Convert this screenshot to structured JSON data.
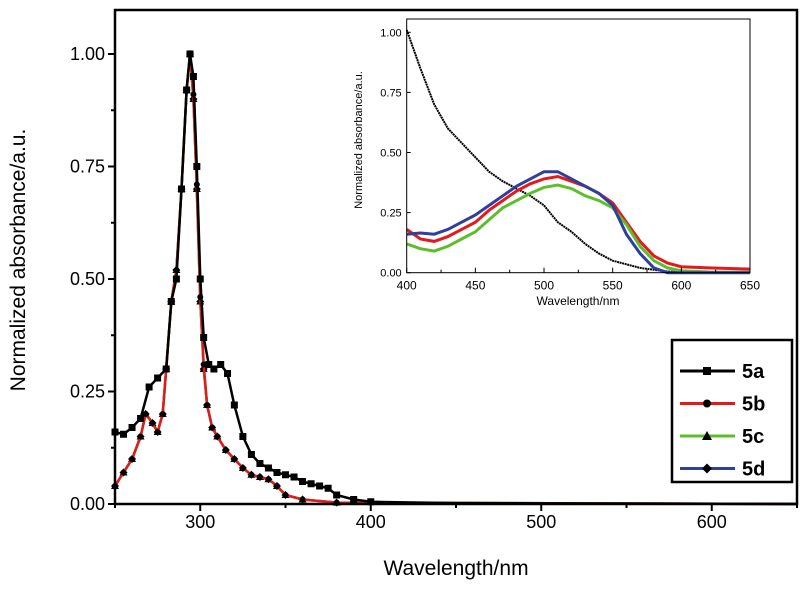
{
  "chart_data": [
    {
      "type": "line",
      "xlabel": "Wavelength/nm",
      "ylabel": "Normalized absorbance/a.u.",
      "xlim": [
        250,
        650
      ],
      "ylim": [
        0,
        1.1
      ],
      "xticks": [
        300,
        400,
        500,
        600
      ],
      "yticks": [
        "0.00",
        "0.25",
        "0.50",
        "0.75",
        "1.00"
      ],
      "legend_position": "right",
      "series": [
        {
          "name": "5a",
          "color": "#000000",
          "marker": "square",
          "x": [
            250,
            255,
            260,
            265,
            270,
            275,
            280,
            283,
            286,
            289,
            292,
            294,
            296,
            298,
            300,
            302,
            305,
            308,
            312,
            316,
            320,
            325,
            330,
            335,
            340,
            345,
            350,
            355,
            360,
            365,
            370,
            375,
            380,
            390,
            400,
            450,
            650
          ],
          "y": [
            0.16,
            0.155,
            0.17,
            0.19,
            0.26,
            0.28,
            0.3,
            0.45,
            0.5,
            0.7,
            0.92,
            1.0,
            0.95,
            0.75,
            0.5,
            0.37,
            0.31,
            0.3,
            0.31,
            0.29,
            0.22,
            0.15,
            0.11,
            0.09,
            0.08,
            0.07,
            0.065,
            0.06,
            0.05,
            0.045,
            0.04,
            0.035,
            0.02,
            0.01,
            0.005,
            0.002,
            0
          ]
        },
        {
          "name": "5b",
          "color": "#e31a1c",
          "marker": "circle",
          "x": [
            250,
            255,
            260,
            265,
            268,
            272,
            275,
            278,
            280,
            283,
            286,
            289,
            292,
            294,
            296,
            298,
            300,
            302,
            304,
            307,
            310,
            315,
            320,
            325,
            330,
            335,
            340,
            345,
            350,
            360,
            380,
            650
          ],
          "y": [
            0.04,
            0.07,
            0.1,
            0.15,
            0.2,
            0.18,
            0.16,
            0.2,
            0.3,
            0.45,
            0.52,
            0.7,
            0.92,
            1.0,
            0.91,
            0.71,
            0.46,
            0.31,
            0.22,
            0.17,
            0.15,
            0.12,
            0.1,
            0.08,
            0.065,
            0.06,
            0.055,
            0.04,
            0.02,
            0.01,
            0.003,
            0
          ]
        },
        {
          "name": "5c",
          "color": "#5cbf2a",
          "marker": "triangle",
          "x": [
            250,
            255,
            260,
            265,
            268,
            272,
            275,
            278,
            280,
            283,
            286,
            289,
            292,
            294,
            296,
            298,
            300,
            302,
            304,
            307,
            310,
            315,
            320,
            325,
            330,
            335,
            340,
            345,
            350,
            360,
            380,
            650
          ],
          "y": [
            0.04,
            0.07,
            0.1,
            0.15,
            0.2,
            0.18,
            0.16,
            0.2,
            0.3,
            0.45,
            0.52,
            0.7,
            0.92,
            1.0,
            0.9,
            0.7,
            0.45,
            0.3,
            0.22,
            0.17,
            0.15,
            0.12,
            0.1,
            0.08,
            0.065,
            0.06,
            0.055,
            0.04,
            0.02,
            0.01,
            0.003,
            0
          ]
        },
        {
          "name": "5d",
          "color": "#2e3f9c",
          "marker": "diamond",
          "x": [
            250,
            255,
            260,
            265,
            268,
            272,
            275,
            278,
            280,
            283,
            286,
            289,
            292,
            294,
            296,
            298,
            300,
            302,
            304,
            307,
            310,
            315,
            320,
            325,
            330,
            335,
            340,
            345,
            350,
            360,
            380,
            650
          ],
          "y": [
            0.04,
            0.07,
            0.1,
            0.15,
            0.2,
            0.18,
            0.16,
            0.2,
            0.3,
            0.45,
            0.52,
            0.7,
            0.92,
            1.0,
            0.9,
            0.7,
            0.45,
            0.3,
            0.22,
            0.17,
            0.15,
            0.12,
            0.1,
            0.08,
            0.065,
            0.06,
            0.055,
            0.04,
            0.02,
            0.01,
            0.003,
            0
          ]
        }
      ]
    },
    {
      "type": "line",
      "xlabel": "Wavelength/nm",
      "ylabel": "Normalized absorbance/a.u.",
      "xlim": [
        400,
        650
      ],
      "ylim": [
        0,
        1.05
      ],
      "xticks": [
        400,
        450,
        500,
        550,
        600,
        650
      ],
      "yticks": [
        "0.00",
        "0.25",
        "0.50",
        "0.75",
        "1.00"
      ],
      "series": [
        {
          "name": "5a",
          "color": "#000000",
          "x": [
            400,
            410,
            420,
            430,
            440,
            450,
            460,
            470,
            480,
            490,
            500,
            510,
            520,
            530,
            540,
            550,
            560,
            570,
            580,
            590,
            600,
            650
          ],
          "y": [
            1.01,
            0.85,
            0.7,
            0.6,
            0.54,
            0.48,
            0.42,
            0.38,
            0.35,
            0.32,
            0.28,
            0.21,
            0.17,
            0.12,
            0.08,
            0.05,
            0.035,
            0.02,
            0.012,
            0.005,
            0.003,
            0
          ]
        },
        {
          "name": "5b",
          "color": "#e31a1c",
          "x": [
            400,
            410,
            420,
            430,
            440,
            450,
            460,
            470,
            480,
            490,
            500,
            510,
            520,
            530,
            540,
            550,
            560,
            570,
            580,
            590,
            600,
            620,
            650
          ],
          "y": [
            0.18,
            0.14,
            0.13,
            0.15,
            0.18,
            0.21,
            0.26,
            0.3,
            0.34,
            0.37,
            0.39,
            0.4,
            0.38,
            0.36,
            0.33,
            0.29,
            0.21,
            0.13,
            0.07,
            0.04,
            0.025,
            0.02,
            0.015
          ]
        },
        {
          "name": "5c",
          "color": "#5cbf2a",
          "x": [
            400,
            410,
            420,
            430,
            440,
            450,
            460,
            470,
            480,
            490,
            500,
            510,
            520,
            530,
            540,
            550,
            560,
            570,
            580,
            590,
            600,
            620,
            650
          ],
          "y": [
            0.12,
            0.1,
            0.09,
            0.11,
            0.14,
            0.17,
            0.22,
            0.27,
            0.3,
            0.33,
            0.355,
            0.365,
            0.35,
            0.32,
            0.3,
            0.27,
            0.2,
            0.11,
            0.05,
            0.02,
            0.008,
            0.003,
            0.002
          ]
        },
        {
          "name": "5d",
          "color": "#2e3f9c",
          "x": [
            400,
            410,
            420,
            430,
            440,
            450,
            460,
            470,
            480,
            490,
            500,
            510,
            520,
            530,
            540,
            550,
            560,
            570,
            580,
            590,
            650
          ],
          "y": [
            0.16,
            0.165,
            0.16,
            0.18,
            0.21,
            0.24,
            0.28,
            0.32,
            0.36,
            0.39,
            0.42,
            0.42,
            0.39,
            0.36,
            0.33,
            0.28,
            0.16,
            0.08,
            0.02,
            0,
            0
          ]
        }
      ]
    }
  ]
}
